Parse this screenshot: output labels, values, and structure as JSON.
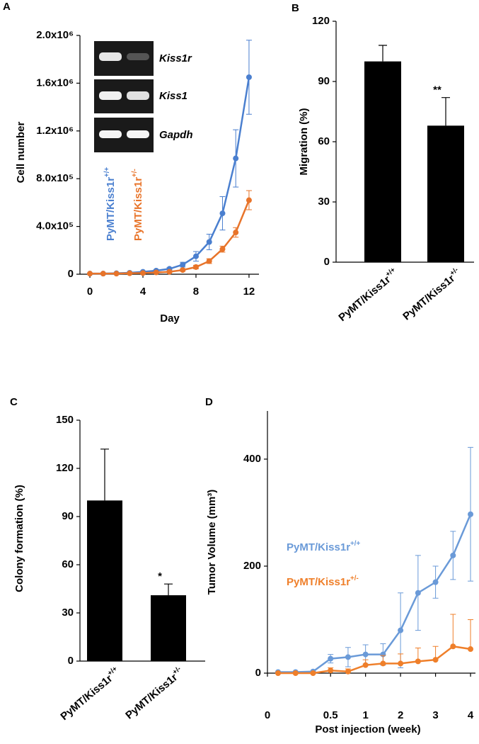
{
  "chart_data": [
    {
      "type": "line",
      "letter": "A",
      "y_label": "Cell number",
      "x_label": "Day",
      "inset_labels": [
        "Kiss1r",
        "Kiss1",
        "Gapdh"
      ],
      "x": [
        0,
        1,
        2,
        3,
        4,
        5,
        6,
        7,
        8,
        9,
        10,
        11,
        12
      ],
      "xlim": [
        -0.75,
        12.75
      ],
      "xticks": [
        0,
        4,
        8,
        12
      ],
      "ylim": [
        0,
        2000000
      ],
      "yticks": [
        0,
        {
          "value": 400000,
          "label": "4.0x10⁵"
        },
        {
          "value": 800000,
          "label": "8.0x10⁵"
        },
        {
          "value": 1200000,
          "label": "1.2x10⁶"
        },
        {
          "value": 1600000,
          "label": "1.6x10⁶"
        },
        {
          "value": 2000000,
          "label": "2.0x10⁶"
        }
      ],
      "series": [
        {
          "name": "PyMT/Kiss1r+/+",
          "color": "#4a7fcf",
          "values": [
            5000,
            5000,
            8000,
            12000,
            20000,
            30000,
            45000,
            80000,
            150000,
            270000,
            510000,
            970000,
            1650000
          ],
          "errors": [
            2000,
            2000,
            3000,
            4000,
            5000,
            8000,
            10000,
            20000,
            40000,
            65000,
            140000,
            240000,
            310000
          ]
        },
        {
          "name": "PyMT/Kiss1r+/-",
          "color": "#e8742a",
          "values": [
            5000,
            5000,
            5000,
            8000,
            10000,
            15000,
            20000,
            35000,
            60000,
            110000,
            210000,
            350000,
            620000
          ],
          "errors": [
            2000,
            2000,
            2000,
            3000,
            4000,
            5000,
            6000,
            10000,
            15000,
            20000,
            25000,
            40000,
            80000
          ]
        }
      ]
    },
    {
      "type": "bar",
      "letter": "B",
      "y_label": "Migration (%)",
      "categories": [
        "PyMT/Kiss1r+/+",
        "PyMT/Kiss1r+/-"
      ],
      "values": [
        100,
        68
      ],
      "errors": [
        8,
        14
      ],
      "annotations": [
        null,
        "**"
      ],
      "color": "#000000",
      "ylim": [
        0,
        120
      ],
      "yticks": [
        0,
        30,
        60,
        90,
        120
      ]
    },
    {
      "type": "bar",
      "letter": "C",
      "y_label": "Colony formation (%)",
      "categories": [
        "PyMT/Kiss1r+/+",
        "PyMT/Kiss1r+/-"
      ],
      "values": [
        100,
        41
      ],
      "errors": [
        32,
        7
      ],
      "annotations": [
        null,
        "*"
      ],
      "color": "#000000",
      "ylim": [
        0,
        150
      ],
      "yticks": [
        0,
        30,
        60,
        90,
        120,
        150
      ]
    },
    {
      "type": "line",
      "letter": "D",
      "y_label": "Tumor Volume (mm³)",
      "x_label": "Post injection (week)",
      "categories": [
        "0",
        null,
        null,
        null,
        "0.5",
        null,
        "1",
        null,
        "2",
        null,
        "3",
        null,
        "4"
      ],
      "ylim": [
        0,
        490
      ],
      "yticks": [
        0,
        200,
        400
      ],
      "series": [
        {
          "name": "PyMT/Kiss1r+/+",
          "color": "#6a9ad8",
          "error_direction": "both",
          "values": [
            null,
            2,
            2,
            3,
            27,
            30,
            35,
            35,
            80,
            150,
            170,
            220,
            297
          ],
          "errors": [
            null,
            0,
            0,
            0,
            8,
            18,
            18,
            20,
            70,
            70,
            30,
            45,
            125
          ]
        },
        {
          "name": "PyMT/Kiss1r+/-",
          "color": "#ef7f2a",
          "error_direction": "up",
          "values": [
            null,
            0,
            0,
            0,
            5,
            3,
            15,
            18,
            18,
            22,
            25,
            50,
            45
          ],
          "errors": [
            null,
            0,
            0,
            0,
            5,
            5,
            10,
            15,
            18,
            25,
            25,
            60,
            55
          ]
        }
      ]
    }
  ]
}
